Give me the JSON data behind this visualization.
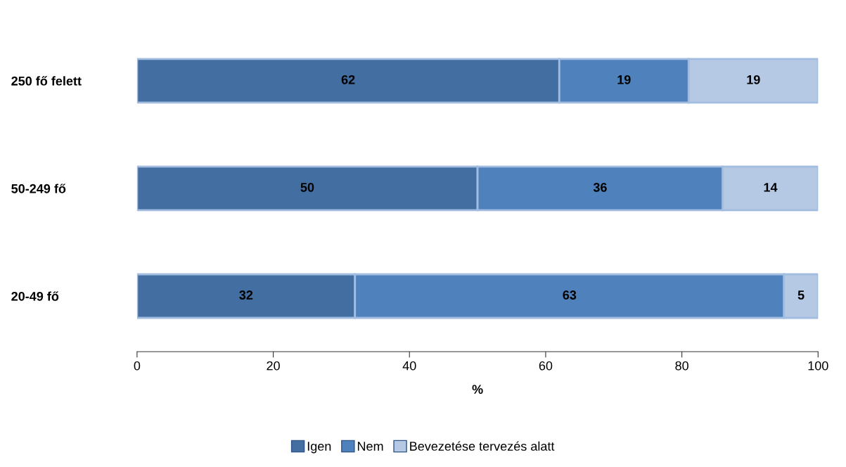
{
  "chart_data": {
    "type": "bar",
    "orientation": "horizontal",
    "stacked": true,
    "categories": [
      "250 fő felett",
      "50-249 fő",
      "20-49 fő"
    ],
    "series": [
      {
        "name": "Igen",
        "color": "#436ea2",
        "values": [
          62,
          50,
          32
        ]
      },
      {
        "name": "Nem",
        "color": "#4f81bd",
        "values": [
          19,
          36,
          63
        ]
      },
      {
        "name": "Bevezetése tervezés alatt",
        "color": "#b5c9e4",
        "values": [
          19,
          14,
          5
        ]
      }
    ],
    "xlabel": "%",
    "xlim": [
      0,
      100
    ],
    "xticks": [
      0,
      20,
      40,
      60,
      80,
      100
    ],
    "data_labels": true,
    "legend": "bottom",
    "grid": false
  }
}
